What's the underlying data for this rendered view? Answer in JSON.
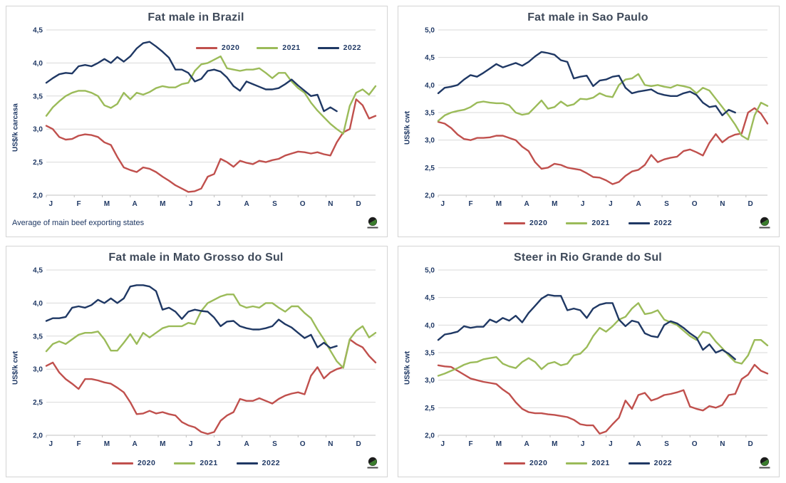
{
  "ui": {
    "background": "#ffffff",
    "panel_border_color": "#d4d4d4",
    "grid_color": "#d9d9d9",
    "axis_line_color": "#c0c0c0",
    "axis_text_color": "#1f3864",
    "title_color": "#3f4a5a",
    "logo_icon": "globe-logo"
  },
  "chart_data": [
    {
      "type": "line",
      "title": "Fat male in Brazil",
      "ylabel": "US$/k carcasa",
      "footnote": "Average  of main beef exporting states",
      "legend_position": "top-right-inside",
      "grid": true,
      "decimal_separator": ",",
      "categories": [
        "J",
        "F",
        "M",
        "A",
        "M",
        "J",
        "J",
        "A",
        "S",
        "O",
        "N",
        "D"
      ],
      "ylim": [
        2.0,
        4.5
      ],
      "yticks": [
        {
          "v": 2.0,
          "label": "2,0"
        },
        {
          "v": 2.5,
          "label": "2,5"
        },
        {
          "v": 3.0,
          "label": "3,0"
        },
        {
          "v": 3.5,
          "label": "3,5"
        },
        {
          "v": 4.0,
          "label": "4,0"
        },
        {
          "v": 4.5,
          "label": "4,5"
        }
      ],
      "series": [
        {
          "name": "2020",
          "color": "#C0504D",
          "values": [
            3.05,
            3.0,
            2.88,
            2.84,
            2.85,
            2.9,
            2.92,
            2.91,
            2.88,
            2.8,
            2.76,
            2.58,
            2.42,
            2.38,
            2.35,
            2.42,
            2.4,
            2.35,
            2.28,
            2.22,
            2.15,
            2.1,
            2.05,
            2.06,
            2.1,
            2.28,
            2.32,
            2.55,
            2.5,
            2.43,
            2.52,
            2.49,
            2.47,
            2.52,
            2.5,
            2.53,
            2.55,
            2.6,
            2.63,
            2.66,
            2.65,
            2.63,
            2.65,
            2.62,
            2.6,
            2.8,
            2.95,
            3.0,
            3.45,
            3.36,
            3.16,
            3.2
          ]
        },
        {
          "name": "2021",
          "color": "#9BBB59",
          "values": [
            3.2,
            3.33,
            3.42,
            3.5,
            3.55,
            3.58,
            3.58,
            3.55,
            3.5,
            3.36,
            3.32,
            3.38,
            3.55,
            3.45,
            3.55,
            3.52,
            3.56,
            3.62,
            3.65,
            3.63,
            3.63,
            3.68,
            3.7,
            3.88,
            3.98,
            4.0,
            4.05,
            4.1,
            3.92,
            3.9,
            3.88,
            3.9,
            3.9,
            3.92,
            3.85,
            3.77,
            3.85,
            3.85,
            3.72,
            3.62,
            3.55,
            3.4,
            3.28,
            3.18,
            3.08,
            3.0,
            2.93,
            3.35,
            3.55,
            3.6,
            3.52,
            3.65
          ]
        },
        {
          "name": "2022",
          "color": "#1F3864",
          "values": [
            3.7,
            3.77,
            3.83,
            3.85,
            3.84,
            3.95,
            3.97,
            3.95,
            4.0,
            4.06,
            4.0,
            4.09,
            4.02,
            4.1,
            4.22,
            4.3,
            4.32,
            4.25,
            4.17,
            4.08,
            3.9,
            3.9,
            3.85,
            3.72,
            3.76,
            3.88,
            3.9,
            3.87,
            3.78,
            3.65,
            3.58,
            3.72,
            3.68,
            3.64,
            3.6,
            3.6,
            3.62,
            3.68,
            3.75,
            3.66,
            3.58,
            3.5,
            3.52,
            3.27,
            3.33,
            3.27
          ]
        }
      ]
    },
    {
      "type": "line",
      "title": "Fat male in Sao Paulo",
      "ylabel": "US$/k cwt",
      "legend_position": "bottom",
      "grid": true,
      "decimal_separator": ",",
      "categories": [
        "J",
        "F",
        "M",
        "A",
        "M",
        "J",
        "J",
        "A",
        "S",
        "O",
        "N",
        "D"
      ],
      "ylim": [
        2.0,
        5.0
      ],
      "yticks": [
        {
          "v": 2.0,
          "label": "2,0"
        },
        {
          "v": 2.5,
          "label": "2,5"
        },
        {
          "v": 3.0,
          "label": "3,0"
        },
        {
          "v": 3.5,
          "label": "3,5"
        },
        {
          "v": 4.0,
          "label": "4,0"
        },
        {
          "v": 4.5,
          "label": "4,5"
        },
        {
          "v": 5.0,
          "label": "5,0"
        }
      ],
      "series": [
        {
          "name": "2020",
          "color": "#C0504D",
          "values": [
            3.33,
            3.3,
            3.22,
            3.1,
            3.02,
            3.0,
            3.04,
            3.04,
            3.05,
            3.08,
            3.08,
            3.04,
            3.0,
            2.88,
            2.8,
            2.6,
            2.48,
            2.5,
            2.57,
            2.55,
            2.5,
            2.48,
            2.46,
            2.4,
            2.33,
            2.32,
            2.27,
            2.2,
            2.24,
            2.35,
            2.43,
            2.46,
            2.55,
            2.73,
            2.6,
            2.65,
            2.68,
            2.7,
            2.8,
            2.83,
            2.78,
            2.72,
            2.95,
            3.11,
            2.96,
            3.05,
            3.1,
            3.12,
            3.5,
            3.58,
            3.48,
            3.3
          ]
        },
        {
          "name": "2021",
          "color": "#9BBB59",
          "values": [
            3.35,
            3.45,
            3.5,
            3.53,
            3.55,
            3.6,
            3.68,
            3.7,
            3.68,
            3.67,
            3.67,
            3.63,
            3.5,
            3.46,
            3.48,
            3.6,
            3.72,
            3.57,
            3.6,
            3.7,
            3.62,
            3.65,
            3.75,
            3.74,
            3.77,
            3.85,
            3.8,
            3.78,
            4.0,
            4.1,
            4.12,
            4.2,
            4.0,
            3.98,
            4.0,
            3.97,
            3.95,
            4.0,
            3.98,
            3.95,
            3.85,
            3.95,
            3.9,
            3.75,
            3.6,
            3.45,
            3.28,
            3.08,
            3.01,
            3.45,
            3.68,
            3.62
          ]
        },
        {
          "name": "2022",
          "color": "#1F3864",
          "values": [
            3.85,
            3.95,
            3.97,
            4.0,
            4.1,
            4.18,
            4.15,
            4.22,
            4.3,
            4.38,
            4.32,
            4.36,
            4.4,
            4.35,
            4.42,
            4.52,
            4.6,
            4.58,
            4.55,
            4.45,
            4.42,
            4.12,
            4.15,
            4.17,
            3.98,
            4.08,
            4.1,
            4.15,
            4.17,
            3.95,
            3.85,
            3.88,
            3.9,
            3.92,
            3.85,
            3.82,
            3.8,
            3.8,
            3.85,
            3.88,
            3.82,
            3.68,
            3.6,
            3.62,
            3.45,
            3.55,
            3.5
          ]
        }
      ]
    },
    {
      "type": "line",
      "title": "Fat male in Mato Grosso do Sul",
      "ylabel": "US$/k cwt",
      "legend_position": "bottom",
      "grid": true,
      "decimal_separator": ",",
      "categories": [
        "J",
        "F",
        "M",
        "A",
        "M",
        "J",
        "J",
        "A",
        "S",
        "O",
        "N",
        "D"
      ],
      "ylim": [
        2.0,
        4.5
      ],
      "yticks": [
        {
          "v": 2.0,
          "label": "2,0"
        },
        {
          "v": 2.5,
          "label": "2,5"
        },
        {
          "v": 3.0,
          "label": "3,0"
        },
        {
          "v": 3.5,
          "label": "3,5"
        },
        {
          "v": 4.0,
          "label": "4,0"
        },
        {
          "v": 4.5,
          "label": "4,5"
        }
      ],
      "series": [
        {
          "name": "2020",
          "color": "#C0504D",
          "values": [
            3.05,
            3.1,
            2.95,
            2.85,
            2.78,
            2.7,
            2.85,
            2.85,
            2.83,
            2.8,
            2.78,
            2.72,
            2.65,
            2.5,
            2.32,
            2.33,
            2.37,
            2.33,
            2.35,
            2.32,
            2.3,
            2.2,
            2.15,
            2.12,
            2.05,
            2.02,
            2.05,
            2.22,
            2.3,
            2.35,
            2.55,
            2.52,
            2.52,
            2.56,
            2.52,
            2.48,
            2.55,
            2.6,
            2.63,
            2.65,
            2.62,
            2.9,
            3.03,
            2.86,
            2.95,
            3.0,
            3.03,
            3.45,
            3.38,
            3.33,
            3.2,
            3.1
          ]
        },
        {
          "name": "2021",
          "color": "#9BBB59",
          "values": [
            3.27,
            3.38,
            3.42,
            3.38,
            3.45,
            3.52,
            3.55,
            3.55,
            3.57,
            3.45,
            3.28,
            3.28,
            3.4,
            3.53,
            3.38,
            3.55,
            3.48,
            3.55,
            3.62,
            3.65,
            3.65,
            3.65,
            3.7,
            3.68,
            3.88,
            4.0,
            4.05,
            4.1,
            4.13,
            4.13,
            3.97,
            3.93,
            3.95,
            3.93,
            4.0,
            4.0,
            3.93,
            3.87,
            3.95,
            3.95,
            3.85,
            3.77,
            3.6,
            3.45,
            3.28,
            3.12,
            3.02,
            3.45,
            3.58,
            3.65,
            3.48,
            3.55
          ]
        },
        {
          "name": "2022",
          "color": "#1F3864",
          "values": [
            3.73,
            3.77,
            3.77,
            3.79,
            3.93,
            3.95,
            3.93,
            3.97,
            4.05,
            4.0,
            4.07,
            4.0,
            4.07,
            4.25,
            4.27,
            4.27,
            4.25,
            4.18,
            3.9,
            3.93,
            3.87,
            3.76,
            3.87,
            3.9,
            3.88,
            3.87,
            3.78,
            3.65,
            3.72,
            3.73,
            3.65,
            3.62,
            3.6,
            3.6,
            3.62,
            3.65,
            3.75,
            3.68,
            3.63,
            3.55,
            3.47,
            3.52,
            3.33,
            3.4,
            3.32,
            3.35
          ]
        }
      ]
    },
    {
      "type": "line",
      "title": "Steer  in Rio Grande do Sul",
      "ylabel": "US$/k cwt",
      "legend_position": "bottom",
      "grid": true,
      "decimal_separator": ",",
      "categories": [
        "J",
        "F",
        "M",
        "A",
        "M",
        "J",
        "J",
        "A",
        "S",
        "O",
        "N",
        "D"
      ],
      "ylim": [
        2.0,
        5.0
      ],
      "yticks": [
        {
          "v": 2.0,
          "label": "2,0"
        },
        {
          "v": 2.5,
          "label": "2,5"
        },
        {
          "v": 3.0,
          "label": "3,0"
        },
        {
          "v": 3.5,
          "label": "3,5"
        },
        {
          "v": 4.0,
          "label": "4,0"
        },
        {
          "v": 4.5,
          "label": "4,5"
        },
        {
          "v": 5.0,
          "label": "5,0"
        }
      ],
      "series": [
        {
          "name": "2020",
          "color": "#C0504D",
          "values": [
            3.27,
            3.25,
            3.24,
            3.17,
            3.1,
            3.03,
            3.0,
            2.97,
            2.95,
            2.93,
            2.83,
            2.75,
            2.6,
            2.48,
            2.42,
            2.4,
            2.4,
            2.38,
            2.37,
            2.35,
            2.33,
            2.28,
            2.2,
            2.18,
            2.18,
            2.03,
            2.07,
            2.2,
            2.32,
            2.63,
            2.48,
            2.73,
            2.77,
            2.63,
            2.67,
            2.73,
            2.75,
            2.78,
            2.82,
            2.52,
            2.48,
            2.45,
            2.53,
            2.5,
            2.55,
            2.73,
            2.75,
            3.02,
            3.1,
            3.28,
            3.17,
            3.12
          ]
        },
        {
          "name": "2021",
          "color": "#9BBB59",
          "values": [
            3.08,
            3.12,
            3.17,
            3.22,
            3.28,
            3.32,
            3.33,
            3.38,
            3.4,
            3.42,
            3.3,
            3.25,
            3.22,
            3.33,
            3.4,
            3.33,
            3.2,
            3.3,
            3.33,
            3.27,
            3.3,
            3.45,
            3.48,
            3.6,
            3.8,
            3.95,
            3.88,
            3.98,
            4.1,
            4.15,
            4.3,
            4.4,
            4.2,
            4.22,
            4.27,
            4.1,
            4.05,
            4.0,
            3.9,
            3.8,
            3.73,
            3.88,
            3.85,
            3.7,
            3.58,
            3.45,
            3.33,
            3.3,
            3.45,
            3.73,
            3.73,
            3.63
          ]
        },
        {
          "name": "2022",
          "color": "#1F3864",
          "values": [
            3.73,
            3.83,
            3.85,
            3.88,
            3.98,
            3.95,
            3.97,
            3.97,
            4.1,
            4.05,
            4.13,
            4.08,
            4.17,
            4.05,
            4.22,
            4.35,
            4.48,
            4.55,
            4.53,
            4.53,
            4.27,
            4.3,
            4.27,
            4.13,
            4.3,
            4.37,
            4.4,
            4.4,
            4.1,
            3.98,
            4.08,
            4.05,
            3.85,
            3.8,
            3.78,
            4.0,
            4.07,
            4.03,
            3.95,
            3.85,
            3.77,
            3.55,
            3.65,
            3.5,
            3.55,
            3.48,
            3.38
          ]
        }
      ]
    }
  ]
}
